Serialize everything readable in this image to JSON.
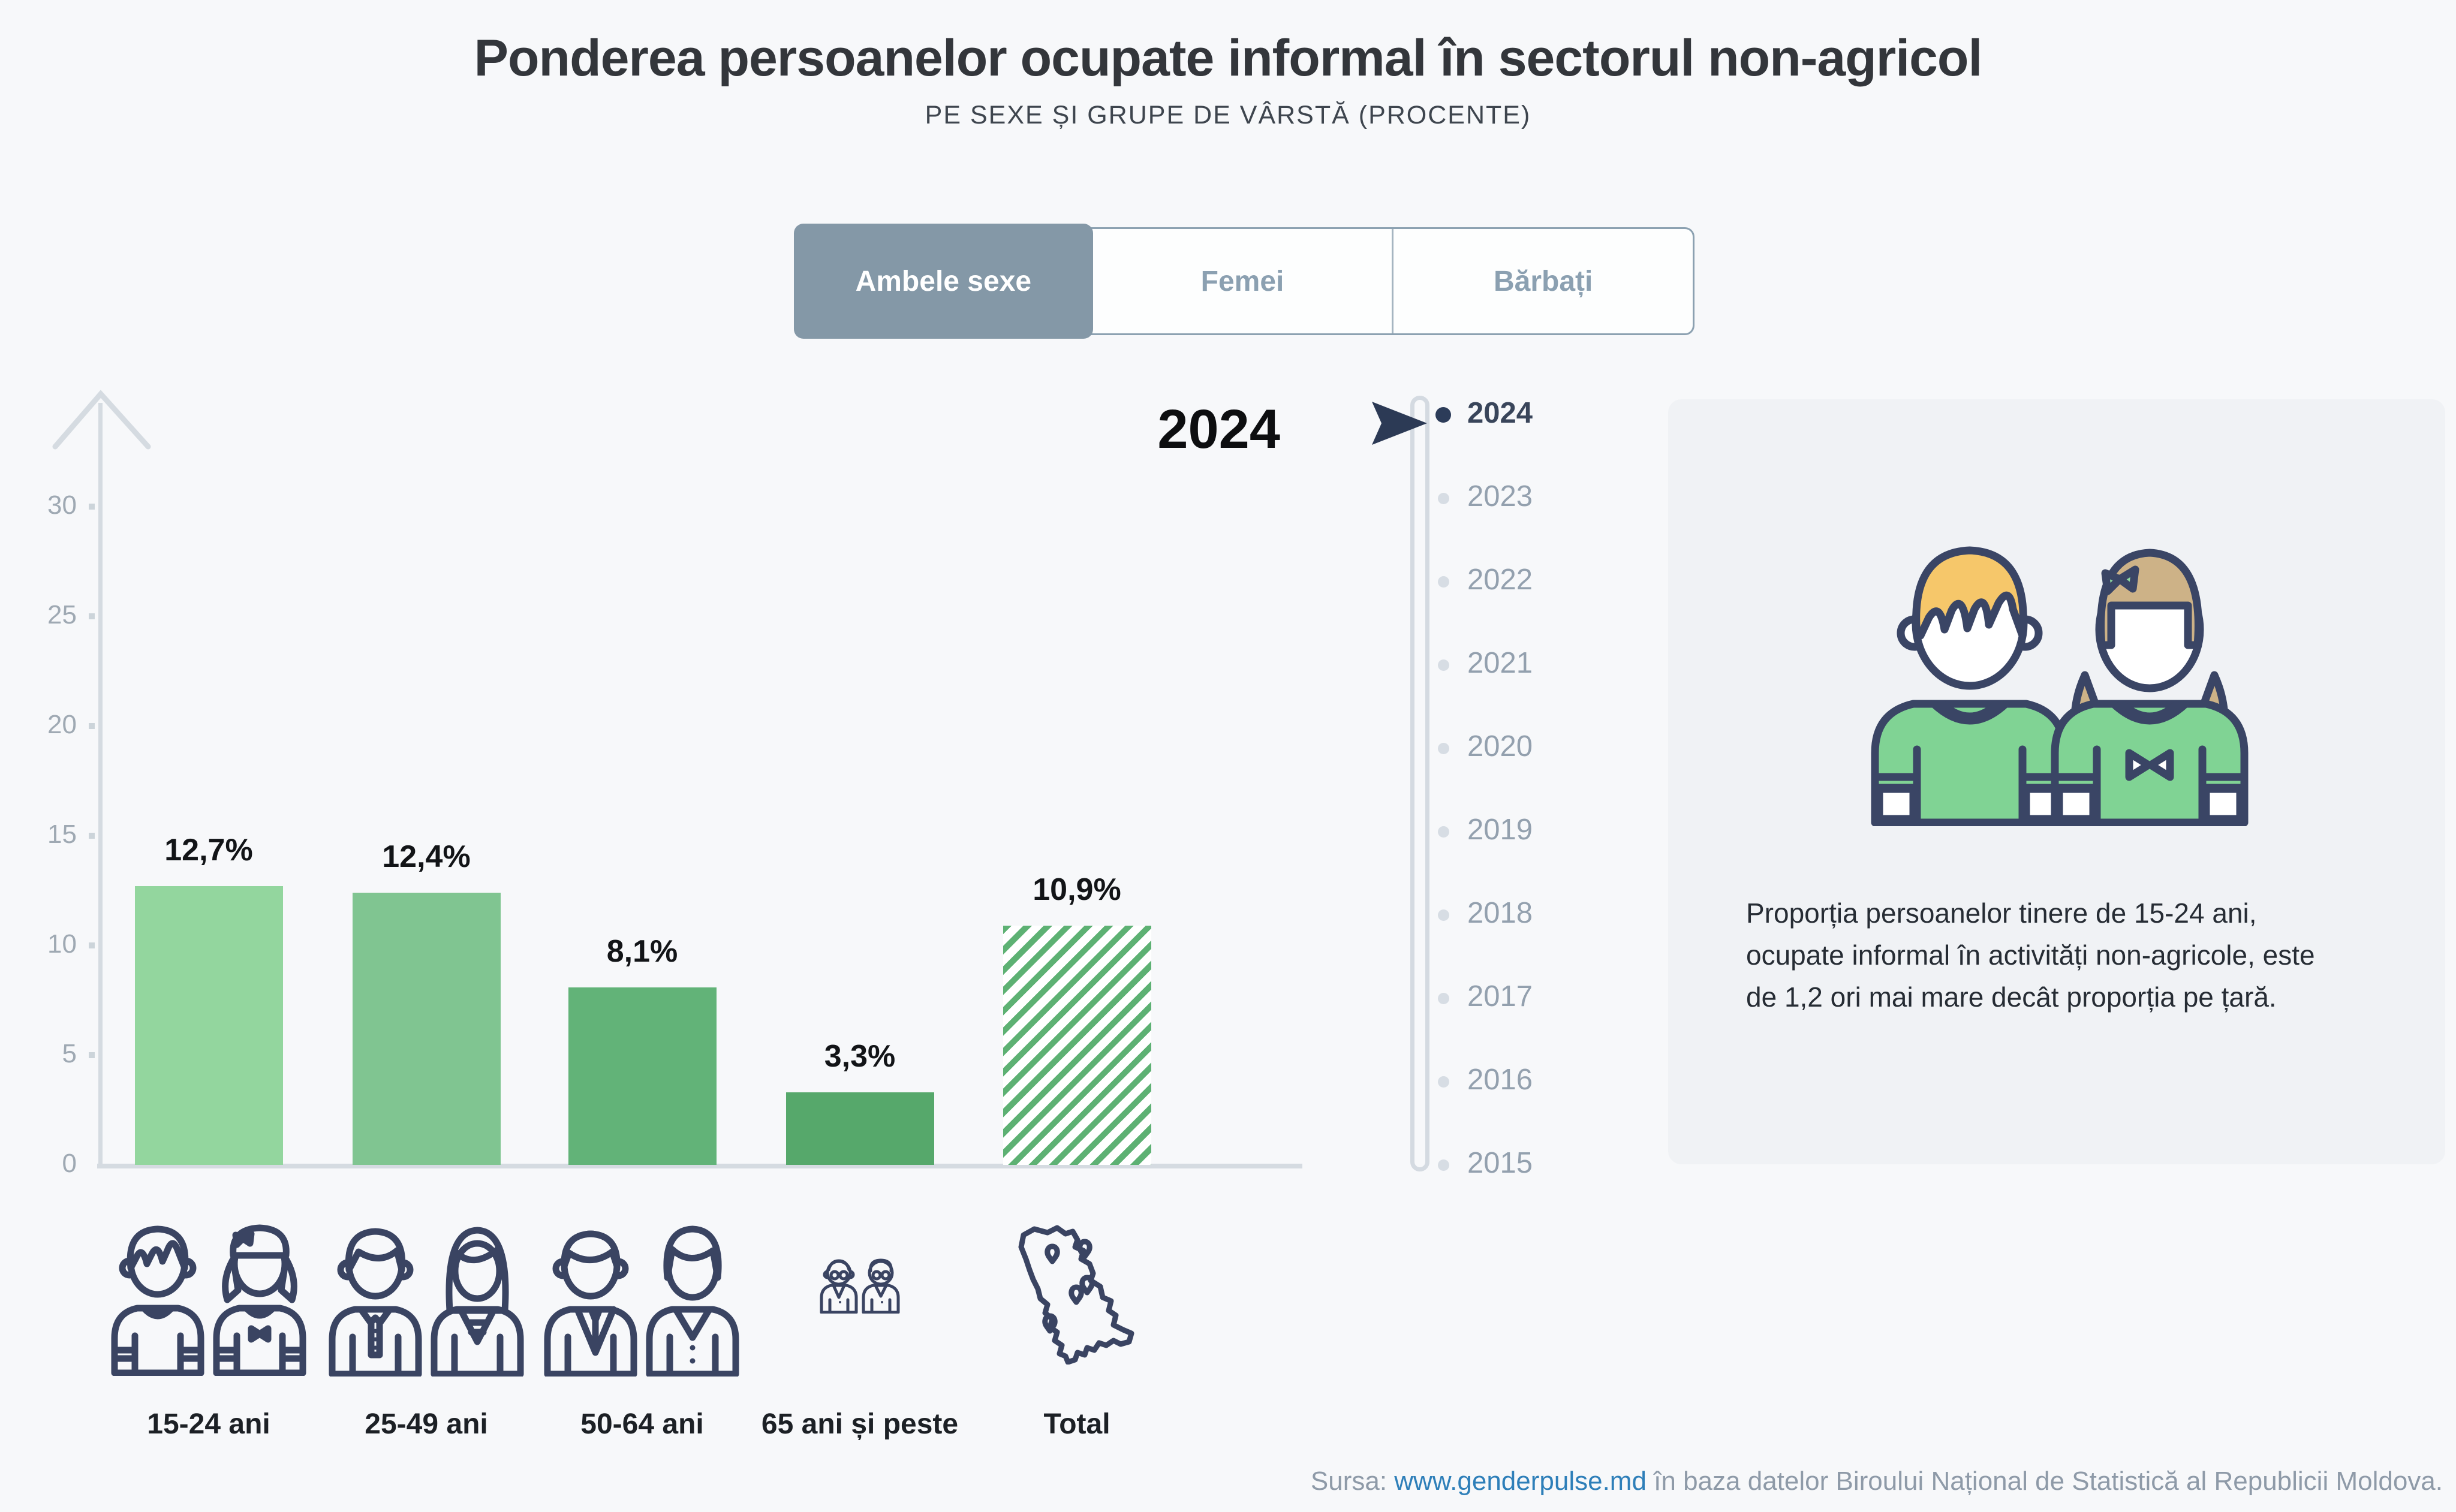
{
  "header": {
    "title": "Ponderea persoanelor ocupate informal în sectorul non-agricol",
    "subtitle": "PE SEXE ȘI GRUPE DE VÂRSTĂ (PROCENTE)"
  },
  "tabs": {
    "items": [
      {
        "label": "Ambele sexe",
        "active": true
      },
      {
        "label": "Femei",
        "active": false
      },
      {
        "label": "Bărbați",
        "active": false
      }
    ]
  },
  "chart_data": {
    "type": "bar",
    "year": "2024",
    "categories": [
      "15-24 ani",
      "25-49 ani",
      "50-64 ani",
      "65 ani și peste",
      "Total"
    ],
    "values": [
      12.7,
      12.4,
      8.1,
      3.3,
      10.9
    ],
    "value_labels": [
      "12,7%",
      "12,4%",
      "8,1%",
      "3,3%",
      "10,9%"
    ],
    "bar_colors": [
      "#93d69e",
      "#80c591",
      "#62b378",
      "#56a86b",
      "hatch"
    ],
    "hatch_color": "#5db173",
    "total_bar_style": "diagonal-hatch",
    "xlabel": "",
    "ylabel": "",
    "ylim": [
      0,
      30
    ],
    "yticks": [
      0,
      5,
      10,
      15,
      20,
      25,
      30
    ],
    "grid": false,
    "legend": "none",
    "icon_names": [
      "young-couple-icon",
      "adult-couple-icon",
      "senior-couple-icon",
      "elderly-couple-icon",
      "moldova-map-icon"
    ]
  },
  "timeline": {
    "years": [
      "2024",
      "2023",
      "2022",
      "2021",
      "2020",
      "2019",
      "2018",
      "2017",
      "2016",
      "2015"
    ],
    "active_year": "2024"
  },
  "infobox": {
    "text": "Proporția persoanelor tinere de 15-24 ani, ocupate informal în activități non-agricole, este de 1,2 ori mai mare decât proporția pe țară.",
    "illustration": "boy-and-girl"
  },
  "source": {
    "prefix": "Sursa: ",
    "link": "www.genderpulse.md",
    "suffix": " în baza datelor Biroului Național de Statistică al Republicii Moldova."
  },
  "colors": {
    "background": "#f7f8fa",
    "accent_green": "#5db173",
    "tab_active_bg": "#8498a7",
    "tab_inactive_text": "#8ba0b1",
    "axis_gray": "#d5dbe1",
    "tick_text": "#9fa9b3",
    "timeline_inactive": "#93a0ae",
    "timeline_active": "#2c3c59",
    "panel_bg": "#f0f2f5",
    "outline_navy": "#3a4462",
    "link_blue": "#2e7fb9"
  }
}
